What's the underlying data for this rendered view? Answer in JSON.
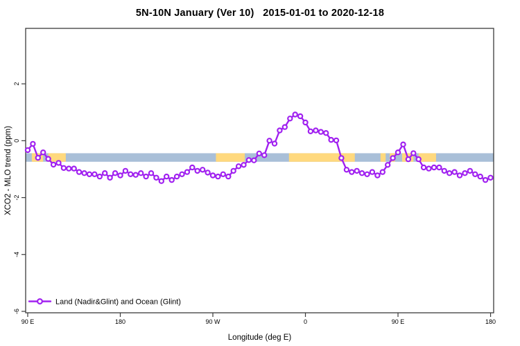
{
  "chart_data": {
    "type": "line",
    "title": "5N-10N January (Ver 10)   2015-01-01 to 2020-12-18",
    "xlabel": "Longitude (deg E)",
    "ylabel": "XCO2 - MLO trend (ppm)",
    "xlim": [
      88,
      543
    ],
    "ylim": [
      -6.05,
      3.95
    ],
    "grid": false,
    "x_ticks": [
      {
        "value": 90,
        "label": "90 E"
      },
      {
        "value": 180,
        "label": "180"
      },
      {
        "value": 270,
        "label": "90 W"
      },
      {
        "value": 360,
        "label": "0"
      },
      {
        "value": 450,
        "label": "90 E"
      },
      {
        "value": 540,
        "label": "180"
      }
    ],
    "y_ticks": [
      {
        "value": 2,
        "label": "2"
      },
      {
        "value": 0,
        "label": "0"
      },
      {
        "value": -2,
        "label": "-2"
      },
      {
        "value": -4,
        "label": "-4"
      },
      {
        "value": -6,
        "label": "-6"
      }
    ],
    "map_band": {
      "band_color": "#A9BFD8",
      "overlay_color": "#FFD97E",
      "y_from": -0.44,
      "y_to": -0.74,
      "overlay_segments": [
        [
          94,
          105
        ],
        [
          110,
          127
        ],
        [
          273,
          301
        ],
        [
          344,
          408
        ],
        [
          433,
          438
        ],
        [
          442,
          447
        ],
        [
          454,
          465
        ],
        [
          470,
          487
        ]
      ]
    },
    "series": [
      {
        "name": "Land (Nadir&Glint) and Ocean (Glint)",
        "color": "#A020F0",
        "marker": "open-circle",
        "x": [
          90,
          95,
          100,
          105,
          110,
          115,
          120,
          125,
          130,
          135,
          140,
          145,
          150,
          155,
          160,
          165,
          170,
          175,
          180,
          185,
          190,
          195,
          200,
          205,
          210,
          215,
          220,
          225,
          230,
          235,
          240,
          245,
          250,
          255,
          260,
          265,
          270,
          275,
          280,
          285,
          290,
          295,
          300,
          305,
          310,
          315,
          320,
          325,
          330,
          335,
          340,
          345,
          350,
          355,
          360,
          365,
          370,
          375,
          380,
          385,
          390,
          395,
          400,
          405,
          410,
          415,
          420,
          425,
          430,
          435,
          440,
          445,
          450,
          455,
          460,
          465,
          470,
          475,
          480,
          485,
          490,
          495,
          500,
          505,
          510,
          515,
          520,
          525,
          530,
          535,
          540
        ],
        "y": [
          -0.33,
          -0.11,
          -0.6,
          -0.41,
          -0.64,
          -0.84,
          -0.78,
          -0.96,
          -0.98,
          -0.98,
          -1.1,
          -1.14,
          -1.18,
          -1.18,
          -1.26,
          -1.14,
          -1.3,
          -1.14,
          -1.22,
          -1.06,
          -1.18,
          -1.2,
          -1.14,
          -1.26,
          -1.14,
          -1.3,
          -1.42,
          -1.26,
          -1.38,
          -1.26,
          -1.18,
          -1.1,
          -0.94,
          -1.06,
          -1.02,
          -1.12,
          -1.22,
          -1.26,
          -1.18,
          -1.26,
          -1.06,
          -0.9,
          -0.85,
          -0.68,
          -0.69,
          -0.45,
          -0.51,
          0.0,
          -0.1,
          0.36,
          0.48,
          0.78,
          0.92,
          0.86,
          0.64,
          0.33,
          0.36,
          0.31,
          0.27,
          0.03,
          0.01,
          -0.61,
          -1.02,
          -1.1,
          -1.06,
          -1.14,
          -1.18,
          -1.1,
          -1.22,
          -1.1,
          -0.85,
          -0.61,
          -0.41,
          -0.13,
          -0.65,
          -0.44,
          -0.65,
          -0.94,
          -0.98,
          -0.94,
          -0.94,
          -1.06,
          -1.14,
          -1.1,
          -1.22,
          -1.14,
          -1.06,
          -1.18,
          -1.26,
          -1.38,
          -1.3
        ]
      }
    ],
    "legend": {
      "position": "bottom-left",
      "entries": [
        {
          "label": "Land (Nadir&Glint) and Ocean (Glint)",
          "color": "#A020F0",
          "marker": "open-circle"
        }
      ]
    }
  },
  "colors": {
    "axis": "#3a3a3a",
    "tick_text": "#000000",
    "background": "#ffffff"
  }
}
